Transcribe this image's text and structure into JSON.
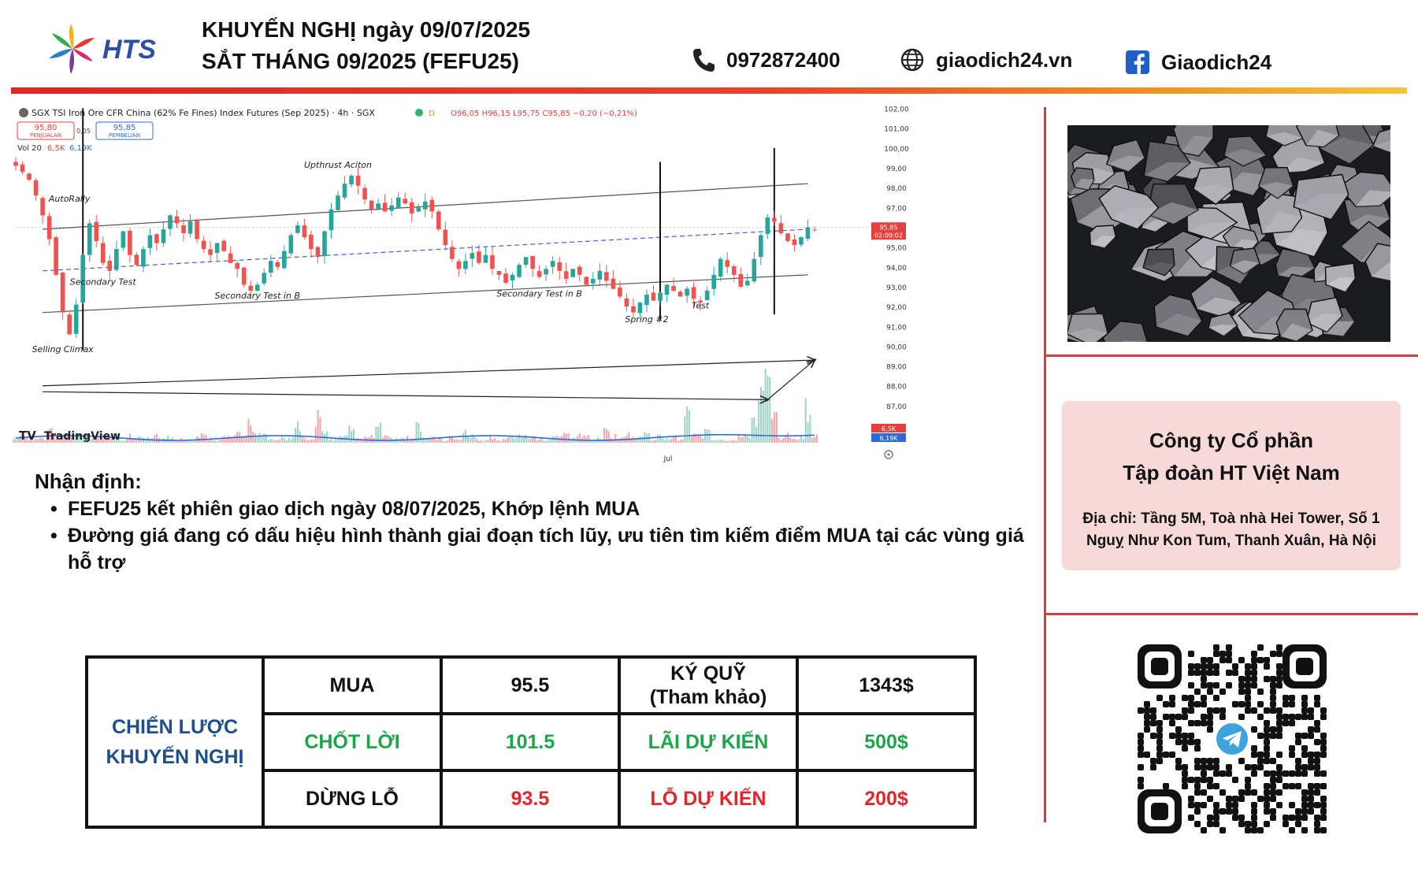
{
  "header": {
    "brand": "HTS",
    "title_line1": "KHUYẾN NGHỊ ngày 09/07/2025",
    "title_line2": "SẮT THÁNG 09/2025 (FEFU25)",
    "phone": "0972872400",
    "website": "giaodich24.vn",
    "facebook": "Giaodich24"
  },
  "colors": {
    "accent_red": "#e0261f",
    "accent_orange": "#f39a24",
    "green": "#1ca64a",
    "red": "#e0262c",
    "navy": "#1f4e8c"
  },
  "chart_data": {
    "type": "candlestick",
    "symbol_line": "SGX TSI Iron Ore CFR China (62% Fe Fines) Index Futures (Sep 2025) · 4h · SGX",
    "ohlc_line": "O96,05 H96,15 L95,75 C95,85 −0,20 (−0,21%)",
    "sell_price": "95,80",
    "sell_label": "PENJUALAN",
    "spread": "0,05",
    "buy_price": "95,85",
    "buy_label": "PEMBELIAN",
    "volume_line_label": "Vol 20",
    "volume_line_v1": "6,5K",
    "volume_line_v2": "6,19K",
    "price_ticks": [
      102,
      101,
      100,
      99,
      98,
      97,
      96,
      95,
      94,
      93,
      92,
      91,
      90,
      89,
      88,
      87
    ],
    "price_tick_labels": [
      "102,00",
      "101,00",
      "100,00",
      "99,00",
      "98,00",
      "97,00",
      "96,00",
      "95,00",
      "94,00",
      "93,00",
      "92,00",
      "91,00",
      "90,00",
      "89,00",
      "88,00",
      "87,00"
    ],
    "ylim": [
      86.4,
      102.3
    ],
    "last_price_tag": "95,85",
    "countdown_tag": "02:09:02",
    "last_price": 95.85,
    "volume_tag_1": "6,5K",
    "volume_tag_2": "6,19K",
    "x_tick_label": "Jul",
    "x_tick_index": 96,
    "n_bars": 120,
    "annotations": [
      {
        "text": "AutoRally",
        "bar": 8,
        "price": 97.3
      },
      {
        "text": "Selling Climax",
        "bar": 7,
        "price": 89.7
      },
      {
        "text": "Secondary Test",
        "bar": 13,
        "price": 93.1
      },
      {
        "text": "Upthrust Aciton",
        "bar": 48,
        "price": 99.0
      },
      {
        "text": "Secondary Test in B",
        "bar": 36,
        "price": 92.4
      },
      {
        "text": "Secondary Test in B",
        "bar": 78,
        "price": 92.5
      },
      {
        "text": "Spring #2",
        "bar": 94,
        "price": 91.2
      },
      {
        "text": "Test",
        "bar": 102,
        "price": 91.9
      }
    ],
    "close_path": [
      [
        0,
        99.1
      ],
      [
        1,
        98.8
      ],
      [
        2,
        98.4
      ],
      [
        3,
        97.6
      ],
      [
        4,
        96.6
      ],
      [
        5,
        95.4
      ],
      [
        6,
        93.6
      ],
      [
        7,
        91.7
      ],
      [
        8,
        90.6
      ],
      [
        9,
        92.1
      ],
      [
        10,
        94.6
      ],
      [
        11,
        96.2
      ],
      [
        12,
        95.3
      ],
      [
        13,
        94.2
      ],
      [
        14,
        93.8
      ],
      [
        15,
        94.9
      ],
      [
        16,
        95.8
      ],
      [
        17,
        94.6
      ],
      [
        18,
        94.1
      ],
      [
        19,
        94.9
      ],
      [
        20,
        95.6
      ],
      [
        21,
        95.2
      ],
      [
        22,
        95.9
      ],
      [
        23,
        96.6
      ],
      [
        24,
        96.2
      ],
      [
        25,
        95.7
      ],
      [
        26,
        96.3
      ],
      [
        27,
        95.4
      ],
      [
        28,
        94.9
      ],
      [
        29,
        94.6
      ],
      [
        30,
        95.2
      ],
      [
        31,
        94.8
      ],
      [
        32,
        94.2
      ],
      [
        33,
        93.9
      ],
      [
        34,
        93.1
      ],
      [
        35,
        92.8
      ],
      [
        36,
        93.1
      ],
      [
        37,
        93.7
      ],
      [
        38,
        94.3
      ],
      [
        39,
        94.0
      ],
      [
        40,
        94.8
      ],
      [
        41,
        95.6
      ],
      [
        42,
        96.1
      ],
      [
        43,
        95.5
      ],
      [
        44,
        94.9
      ],
      [
        45,
        94.5
      ],
      [
        46,
        95.8
      ],
      [
        47,
        96.9
      ],
      [
        48,
        97.6
      ],
      [
        49,
        98.2
      ],
      [
        50,
        98.6
      ],
      [
        51,
        98.1
      ],
      [
        52,
        97.4
      ],
      [
        53,
        96.9
      ],
      [
        54,
        97.2
      ],
      [
        55,
        96.8
      ],
      [
        56,
        97.1
      ],
      [
        57,
        97.5
      ],
      [
        58,
        97.2
      ],
      [
        59,
        96.7
      ],
      [
        60,
        97.0
      ],
      [
        61,
        97.3
      ],
      [
        62,
        96.8
      ],
      [
        63,
        95.9
      ],
      [
        64,
        95.1
      ],
      [
        65,
        94.4
      ],
      [
        66,
        93.9
      ],
      [
        67,
        94.3
      ],
      [
        68,
        94.7
      ],
      [
        69,
        94.2
      ],
      [
        70,
        94.6
      ],
      [
        71,
        93.9
      ],
      [
        72,
        93.6
      ],
      [
        73,
        93.2
      ],
      [
        74,
        93.6
      ],
      [
        75,
        94.1
      ],
      [
        76,
        94.5
      ],
      [
        77,
        93.9
      ],
      [
        78,
        93.5
      ],
      [
        79,
        93.9
      ],
      [
        80,
        94.3
      ],
      [
        81,
        93.8
      ],
      [
        82,
        93.4
      ],
      [
        83,
        93.9
      ],
      [
        84,
        93.6
      ],
      [
        85,
        93.1
      ],
      [
        86,
        93.4
      ],
      [
        87,
        93.8
      ],
      [
        88,
        93.3
      ],
      [
        89,
        92.9
      ],
      [
        90,
        92.5
      ],
      [
        91,
        92.0
      ],
      [
        92,
        91.7
      ],
      [
        93,
        92.2
      ],
      [
        94,
        92.6
      ],
      [
        95,
        92.3
      ],
      [
        96,
        92.7
      ],
      [
        97,
        93.1
      ],
      [
        98,
        92.8
      ],
      [
        99,
        92.5
      ],
      [
        100,
        92.9
      ],
      [
        101,
        92.4
      ],
      [
        102,
        92.2
      ],
      [
        103,
        92.8
      ],
      [
        104,
        93.6
      ],
      [
        105,
        94.4
      ],
      [
        106,
        94.0
      ],
      [
        107,
        93.6
      ],
      [
        108,
        93.0
      ],
      [
        109,
        93.3
      ],
      [
        110,
        94.4
      ],
      [
        111,
        95.6
      ],
      [
        112,
        96.5
      ],
      [
        113,
        96.3
      ],
      [
        114,
        95.7
      ],
      [
        115,
        95.3
      ],
      [
        116,
        95.1
      ],
      [
        117,
        95.5
      ],
      [
        118,
        96.0
      ],
      [
        119,
        95.85
      ]
    ],
    "channel_upper": [
      [
        4,
        95.9
      ],
      [
        118,
        98.2
      ]
    ],
    "channel_lower": [
      [
        4,
        91.7
      ],
      [
        118,
        93.6
      ]
    ],
    "channel_mid": [
      [
        4,
        93.8
      ],
      [
        118,
        95.9
      ]
    ],
    "vertical_lines": [
      [
        10,
        102,
        89.8
      ],
      [
        96,
        99.3,
        91.3
      ],
      [
        113,
        100.0,
        91.6
      ]
    ],
    "arrows": [
      {
        "from": [
          4,
          88.0
        ],
        "to": [
          119,
          89.3
        ]
      },
      {
        "from": [
          4,
          87.7
        ],
        "to": [
          112,
          87.3
        ]
      },
      {
        "from": [
          112,
          87.3
        ],
        "to": [
          119,
          89.3
        ]
      }
    ]
  },
  "watermark": "TradingView",
  "analysis": {
    "title": "Nhận định:",
    "bullets": [
      "FEFU25 kết phiên giao dịch ngày 08/07/2025, Khớp lệnh MUA",
      "Đường giá đang có dấu hiệu hình thành giai đoạn tích lũy, ưu tiên tìm kiếm điểm MUA tại các vùng giá hỗ trợ"
    ]
  },
  "strategy": {
    "label_line1": "CHIẾN LƯỢC",
    "label_line2": "KHUYẾN NGHỊ",
    "rows": [
      {
        "action": "MUA",
        "price": "95.5",
        "metric_line1": "KÝ QUỸ",
        "metric_line2": "(Tham khảo)",
        "amount": "1343$"
      },
      {
        "action": "CHỐT LỜI",
        "price": "101.5",
        "metric_line1": "LÃI DỰ KIẾN",
        "metric_line2": "",
        "amount": "500$"
      },
      {
        "action": "DỪNG LỖ",
        "price": "93.5",
        "metric_line1": "LỖ DỰ KIẾN",
        "metric_line2": "",
        "amount": "200$"
      }
    ]
  },
  "company": {
    "name_line1": "Công ty Cổ phần",
    "name_line2": "Tập đoàn HT Việt Nam",
    "address_line1": "Địa chỉ: Tầng 5M, Toà nhà Hei Tower, Số 1",
    "address_line2": "Nguỵ Như Kon Tum, Thanh Xuân, Hà Nội"
  },
  "icons": {
    "phone": "phone-icon",
    "globe": "globe-icon",
    "facebook": "facebook-icon",
    "telegram": "telegram-icon",
    "logo": "hts-logo"
  }
}
